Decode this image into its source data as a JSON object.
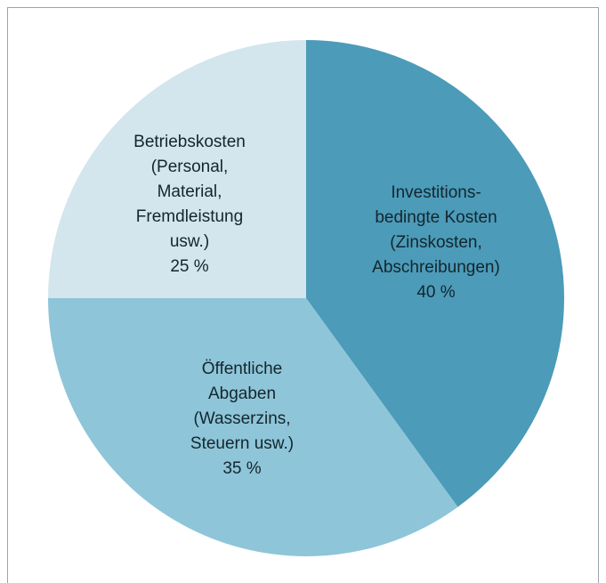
{
  "chart_data": {
    "type": "pie",
    "labels": [
      [
        "Investitions-",
        "bedingte Kosten",
        "(Zinskosten,",
        "Abschreibungen)"
      ],
      [
        "Öffentliche",
        "Abgaben",
        "(Wasserzins,",
        "Steuern usw.)"
      ],
      [
        "Betriebskosten",
        "(Personal,",
        "Material,",
        "Fremdleistung",
        "usw.)"
      ]
    ],
    "values": [
      40,
      35,
      25
    ],
    "value_labels": [
      "40 %",
      "35 %",
      "25 %"
    ],
    "colors": [
      "#4b9bb9",
      "#8ec5d9",
      "#d3e5ed"
    ]
  }
}
